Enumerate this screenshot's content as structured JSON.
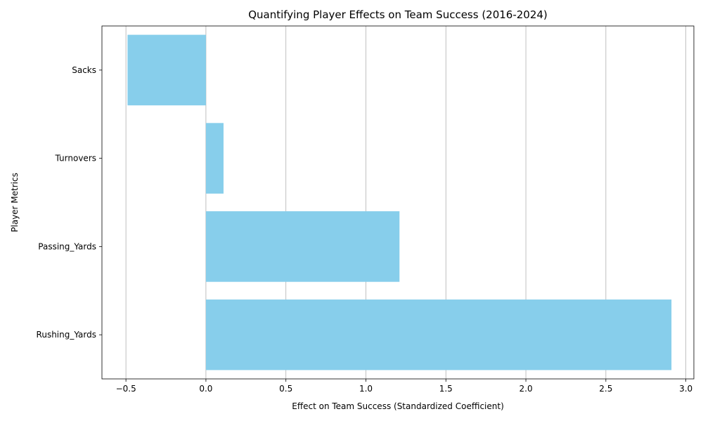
{
  "chart_data": {
    "type": "bar",
    "orientation": "horizontal",
    "title": "Quantifying Player Effects on Team Success (2016-2024)",
    "xlabel": "Effect on Team Success (Standardized Coefficient)",
    "ylabel": "Player Metrics",
    "categories": [
      "Rushing_Yards",
      "Passing_Yards",
      "Turnovers",
      "Sacks"
    ],
    "values": [
      2.91,
      1.21,
      0.11,
      -0.49
    ],
    "xlim": [
      -0.65,
      3.05
    ],
    "xticks": [
      -0.5,
      0.0,
      0.5,
      1.0,
      1.5,
      2.0,
      2.5,
      3.0
    ],
    "xtick_labels": [
      "−0.5",
      "0.0",
      "0.5",
      "1.0",
      "1.5",
      "2.0",
      "2.5",
      "3.0"
    ],
    "grid": "x",
    "bar_color": "#87ceeb"
  }
}
